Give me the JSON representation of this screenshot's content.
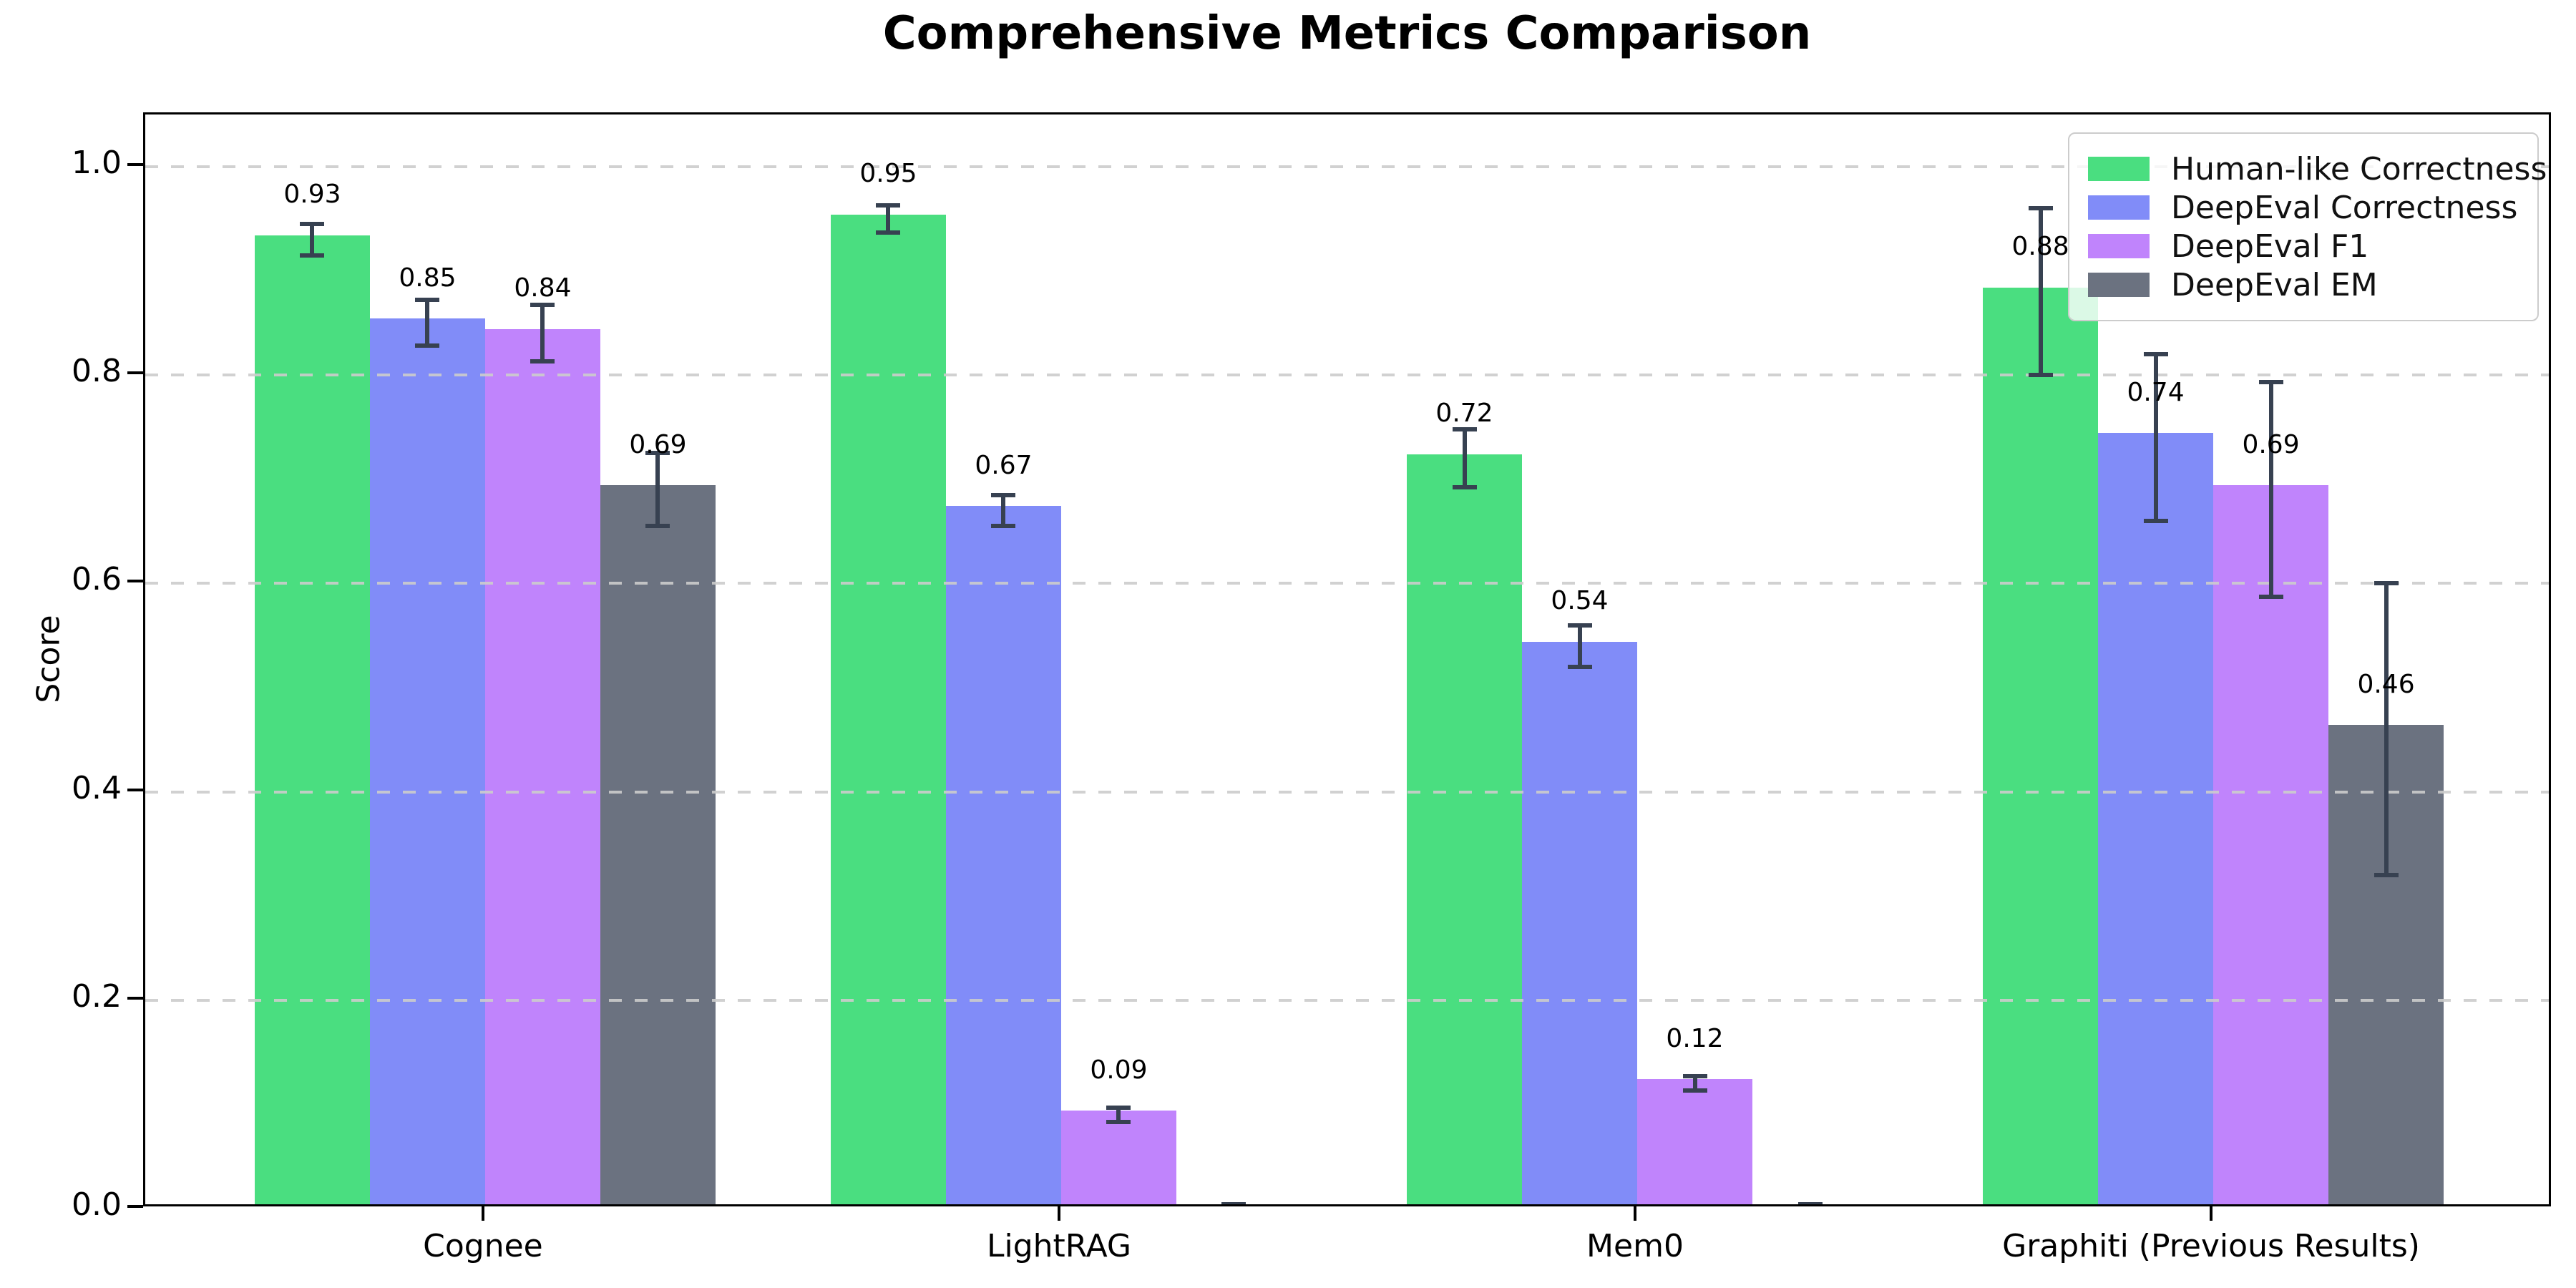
{
  "title": "Comprehensive Metrics Comparison",
  "chart_data": {
    "type": "bar",
    "title": "Comprehensive Metrics Comparison",
    "xlabel": "",
    "ylabel": "Score",
    "categories": [
      "Cognee",
      "LightRAG",
      "Mem0",
      "Graphiti (Previous Results)"
    ],
    "series": [
      {
        "name": "Human-like Correctness",
        "color": "#4ade80",
        "values": [
          0.93,
          0.95,
          0.72,
          0.88
        ],
        "errors": [
          0.015,
          0.013,
          0.028,
          0.08
        ],
        "labels": [
          "0.93",
          "0.95",
          "0.72",
          "0.88"
        ]
      },
      {
        "name": "DeepEval Correctness",
        "color": "#818cf8",
        "values": [
          0.85,
          0.67,
          0.54,
          0.74
        ],
        "errors": [
          0.022,
          0.015,
          0.02,
          0.08
        ],
        "labels": [
          "0.85",
          "0.67",
          "0.54",
          "0.74"
        ]
      },
      {
        "name": "DeepEval F1",
        "color": "#c084fc",
        "values": [
          0.84,
          0.09,
          0.12,
          0.69
        ],
        "errors": [
          0.027,
          0.007,
          0.007,
          0.103
        ],
        "labels": [
          "0.84",
          "0.09",
          "0.12",
          "0.69"
        ]
      },
      {
        "name": "DeepEval EM",
        "color": "#6b7280",
        "values": [
          0.69,
          0.0,
          0.0,
          0.46
        ],
        "errors": [
          0.035,
          0.004,
          0.004,
          0.14
        ],
        "labels": [
          "0.69",
          "",
          "",
          "0.46"
        ]
      }
    ],
    "yticks": [
      "0.0",
      "0.2",
      "0.4",
      "0.6",
      "0.8",
      "1.0"
    ],
    "ylim": [
      0,
      1.05
    ],
    "grid": "dashed-horizontal",
    "grid_color": "#cccccc",
    "error_bar_color": "#374151",
    "legend_position": "upper-right",
    "legend_entries": [
      "Human-like Correctness",
      "DeepEval Correctness",
      "DeepEval F1",
      "DeepEval EM"
    ]
  }
}
